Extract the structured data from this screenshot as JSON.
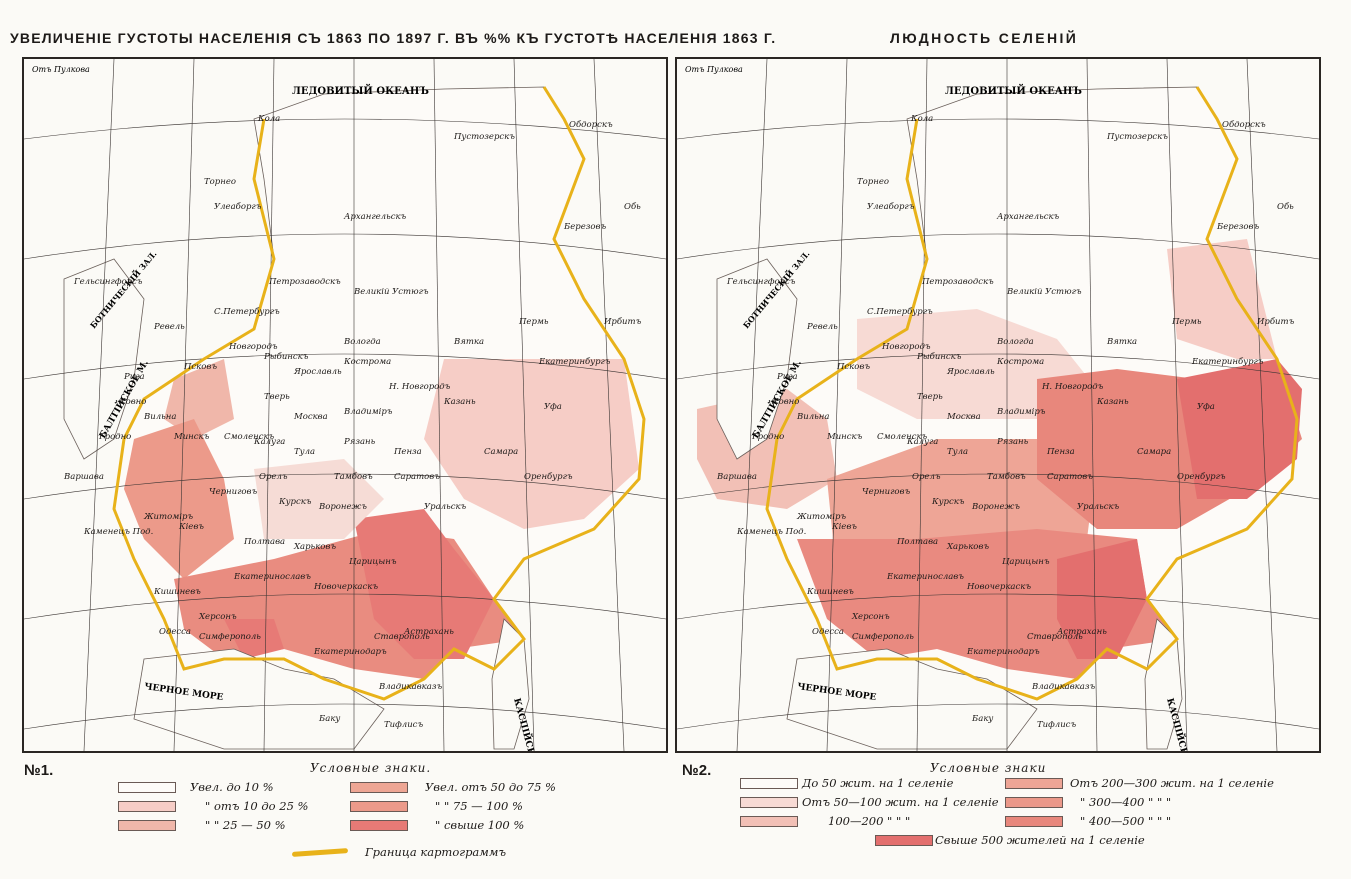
{
  "titles": {
    "left": "УВЕЛИЧЕНIЕ ГУСТОТЫ НАСЕЛЕНIЯ СЪ 1863 ПО 1897 Г. ВЪ %% КЪ ГУСТОТѢ НАСЕЛЕНIЯ 1863 Г.",
    "right": "ЛЮДНОСТЬ СЕЛЕНIЙ"
  },
  "map_numbers": {
    "left": "№1.",
    "right": "№2."
  },
  "legend_left": {
    "heading": "Условные знаки.",
    "items": [
      {
        "label": "Увел. до 10 %",
        "color": "#fdfbf8"
      },
      {
        "label": "\"  отъ 10 до 25 %",
        "color": "#f6cdc6"
      },
      {
        "label": "\"  \"  25 — 50 %",
        "color": "#f0b7aa"
      },
      {
        "label": "Увел. отъ 50 до 75 %",
        "color": "#eea694"
      },
      {
        "label": "\"  \"  75 — 100 %",
        "color": "#ec9a8a"
      },
      {
        "label": "\"  свыше 100 %",
        "color": "#e77a76"
      }
    ],
    "border_label": "Граница картограммъ",
    "border_color": "#e8b21a"
  },
  "legend_right": {
    "heading": "Условные знаки",
    "items": [
      {
        "label": "До 50 жит. на 1 селенiе",
        "color": "#fdfbf8"
      },
      {
        "label": "Отъ 50—100 жит. на 1 селенiе",
        "color": "#f7dad4"
      },
      {
        "label": "100—200  \"  \"  \"",
        "color": "#f2c0b6"
      },
      {
        "label": "Отъ 200—300 жит. на 1 селенiе",
        "color": "#eea596"
      },
      {
        "label": "\"  300—400  \"  \"  \"",
        "color": "#eb9889"
      },
      {
        "label": "\"  400—500  \"  \"  \"",
        "color": "#e8877c"
      },
      {
        "label": "Свыше 500 жителей на 1 селенiе",
        "color": "#e36f6e"
      }
    ]
  },
  "map_labels": {
    "ocean": "ЛЕДОВИТЫЙ ОКЕАНЪ",
    "black_sea": "ЧЕРНОЕ МОРЕ",
    "caspian": "КАСПIЙСКОЕ",
    "baltic": "БАЛТIЙСКОЕ М.",
    "botnia": "БОТНИЧЕСКIЙ ЗАЛ.",
    "meridian": "Отъ Пулкова",
    "cities": [
      "Кола",
      "Архангельскъ",
      "Пустозерскъ",
      "Обдорскъ",
      "Березовъ",
      "Обь",
      "Торнео",
      "Улеаборгъ",
      "Гельсингфорсъ",
      "Вологда",
      "Кострома",
      "Ярославль",
      "Москва",
      "Тверь",
      "Рыбинскъ",
      "Новгородъ",
      "Псковъ",
      "Рига",
      "Ковно",
      "Вильна",
      "Гродно",
      "Минскъ",
      "Варшава",
      "Смоленскъ",
      "Калуга",
      "Тула",
      "Орелъ",
      "Рязань",
      "Владимiръ",
      "Н. Новгородъ",
      "Казань",
      "Вятка",
      "Пермь",
      "Екатеринбургъ",
      "Уфа",
      "Самара",
      "Оренбургъ",
      "Саратовъ",
      "Пенза",
      "Тамбовъ",
      "Воронежъ",
      "Курскъ",
      "Черниговъ",
      "Кiевъ",
      "Житомiръ",
      "Полтава",
      "Харьковъ",
      "Екатеринославъ",
      "Херсонъ",
      "Одесса",
      "Кишиневъ",
      "Симферополь",
      "Новочеркаскъ",
      "Царицынъ",
      "Астрахань",
      "Ставрополь",
      "Екатеринодаръ",
      "Владикавказъ",
      "Тифлисъ",
      "Баку",
      "Уральскъ",
      "Ирбитъ",
      "Великiй Устюгъ",
      "Петрозаводскъ",
      "С.Петербургъ",
      "Ревель",
      "Каменецъ Под."
    ]
  },
  "colors": {
    "water": "#fbfaf6",
    "frame": "#2a2623",
    "border": "#e8b21a",
    "grid": "#3a3432"
  }
}
